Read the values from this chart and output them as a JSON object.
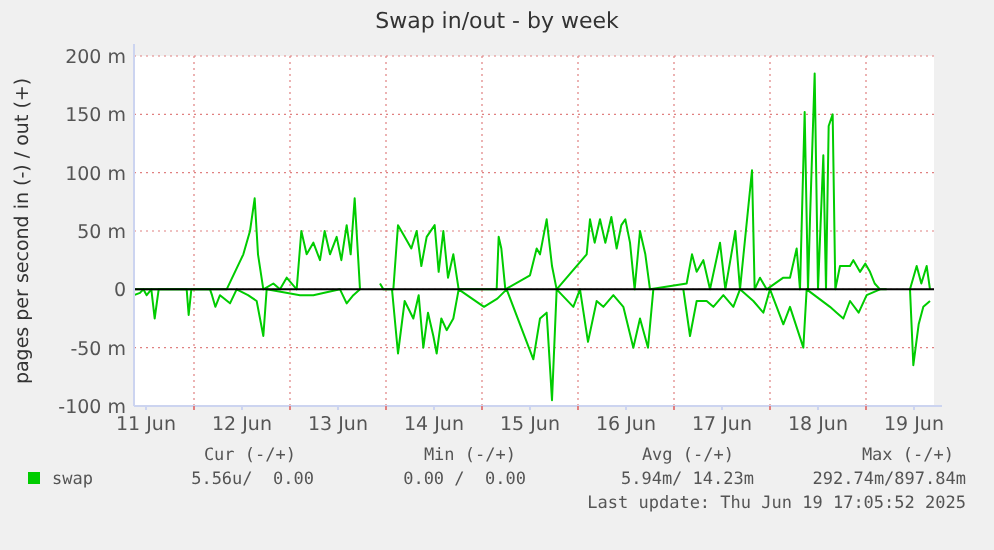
{
  "chart_data": {
    "type": "line",
    "title": "Swap in/out - by week",
    "ylabel": "pages per second in (-) / out (+)",
    "xlim": [
      "2025-06-11T09:00",
      "2025-06-19T17:00"
    ],
    "xticks": [
      {
        "value": "2025-06-11T12:00",
        "label": "11 Jun"
      },
      {
        "value": "2025-06-12T12:00",
        "label": "12 Jun"
      },
      {
        "value": "2025-06-13T12:00",
        "label": "13 Jun"
      },
      {
        "value": "2025-06-14T12:00",
        "label": "14 Jun"
      },
      {
        "value": "2025-06-15T12:00",
        "label": "15 Jun"
      },
      {
        "value": "2025-06-16T12:00",
        "label": "16 Jun"
      },
      {
        "value": "2025-06-17T12:00",
        "label": "17 Jun"
      },
      {
        "value": "2025-06-18T12:00",
        "label": "18 Jun"
      },
      {
        "value": "2025-06-19T12:00",
        "label": "19 Jun"
      },
      {
        "value": "2025-06-12T00:00",
        "label": null
      },
      {
        "value": "2025-06-13T00:00",
        "label": null
      },
      {
        "value": "2025-06-14T00:00",
        "label": null
      },
      {
        "value": "2025-06-15T00:00",
        "label": null
      },
      {
        "value": "2025-06-16T00:00",
        "label": null
      },
      {
        "value": "2025-06-17T00:00",
        "label": null
      },
      {
        "value": "2025-06-18T00:00",
        "label": null
      },
      {
        "value": "2025-06-19T00:00",
        "label": null
      }
    ],
    "ylim": [
      -100,
      200
    ],
    "yticks": [
      {
        "value": -100,
        "label": "-100 m"
      },
      {
        "value": -50,
        "label": "-50 m"
      },
      0,
      {
        "value": 50,
        "label": "50 m"
      },
      {
        "value": 100,
        "label": "100 m"
      },
      {
        "value": 150,
        "label": "150 m"
      },
      {
        "value": 200,
        "label": "200 m"
      }
    ],
    "grid": true,
    "legend": "bottom",
    "marker": "none",
    "line_style": "solid",
    "ref_lines": [
      {
        "axis": "y",
        "value": 0,
        "label": null,
        "color": "#000000"
      }
    ],
    "series": [
      {
        "name": "swap",
        "color": "#00cc00",
        "x": [
          "2025-06-11T09:00",
          "2025-06-12T08:10",
          "2025-06-12T12:20",
          "2025-06-12T14:00",
          "2025-06-12T15:10",
          "2025-06-12T16:00",
          "2025-06-12T17:20",
          "2025-06-12T19:50",
          "2025-06-12T21:30",
          "2025-06-12T23:10",
          "2025-06-13T01:40",
          "2025-06-13T02:50",
          "2025-06-13T04:10",
          "2025-06-13T05:50",
          "2025-06-13T07:30",
          "2025-06-13T08:40",
          "2025-06-13T10:00",
          "2025-06-13T11:40",
          "2025-06-13T12:50",
          "2025-06-13T14:10",
          "2025-06-13T15:10",
          "2025-06-13T16:10",
          "2025-06-13T17:30",
          "2025-06-13T20:00",
          "2025-06-13T22:30",
          "2025-06-13T23:20",
          "2025-06-14T01:50",
          "2025-06-14T03:00",
          "2025-06-14T04:40",
          "2025-06-14T06:20",
          "2025-06-14T07:40",
          "2025-06-14T08:50",
          "2025-06-14T10:10",
          "2025-06-14T12:10",
          "2025-06-14T13:10",
          "2025-06-14T14:20",
          "2025-06-14T15:30",
          "2025-06-14T16:50",
          "2025-06-14T18:10",
          "2025-06-15T03:40",
          "2025-06-15T04:10",
          "2025-06-15T04:50",
          "2025-06-15T05:50",
          "2025-06-15T12:00",
          "2025-06-15T13:40",
          "2025-06-15T14:30",
          "2025-06-15T16:10",
          "2025-06-15T17:30",
          "2025-06-15T18:40",
          "2025-06-16T02:10",
          "2025-06-16T03:00",
          "2025-06-16T04:10",
          "2025-06-16T05:30",
          "2025-06-16T06:50",
          "2025-06-16T08:20",
          "2025-06-16T09:40",
          "2025-06-16T10:50",
          "2025-06-16T11:50",
          "2025-06-16T13:00",
          "2025-06-16T14:10",
          "2025-06-16T15:30",
          "2025-06-16T16:50",
          "2025-06-16T18:00",
          "2025-06-17T03:10",
          "2025-06-17T04:30",
          "2025-06-17T05:40",
          "2025-06-17T07:20",
          "2025-06-17T09:00",
          "2025-06-17T11:30",
          "2025-06-17T12:50",
          "2025-06-17T15:20",
          "2025-06-17T16:30",
          "2025-06-17T19:30",
          "2025-06-17T20:10",
          "2025-06-17T21:30",
          "2025-06-17T23:10",
          "2025-06-18T03:20",
          "2025-06-18T05:00",
          "2025-06-18T06:40",
          "2025-06-18T07:30",
          "2025-06-18T08:40",
          "2025-06-18T09:30",
          "2025-06-18T10:00",
          "2025-06-18T11:10",
          "2025-06-18T12:00",
          "2025-06-18T13:20",
          "2025-06-18T14:00",
          "2025-06-18T14:40",
          "2025-06-18T15:40",
          "2025-06-18T16:20",
          "2025-06-18T17:30",
          "2025-06-18T20:00",
          "2025-06-18T20:50",
          "2025-06-18T22:30",
          "2025-06-18T23:50",
          "2025-06-19T01:00",
          "2025-06-19T02:10",
          "2025-06-19T03:30",
          "2025-06-19T05:10",
          "2025-06-19T08:00",
          "2025-06-19T11:00",
          "2025-06-19T12:40",
          "2025-06-19T13:50",
          "2025-06-19T15:10",
          "2025-06-19T16:00"
        ],
        "values": [
          0,
          0,
          30,
          50,
          78,
          30,
          0,
          5,
          0,
          10,
          0,
          50,
          30,
          40,
          25,
          50,
          30,
          45,
          25,
          55,
          30,
          78,
          0,
          null,
          5,
          0,
          0,
          55,
          45,
          35,
          50,
          20,
          45,
          55,
          15,
          50,
          10,
          30,
          0,
          0,
          45,
          35,
          0,
          12,
          35,
          30,
          60,
          20,
          0,
          30,
          60,
          40,
          60,
          40,
          62,
          35,
          55,
          60,
          40,
          0,
          50,
          30,
          0,
          5,
          30,
          15,
          25,
          0,
          40,
          0,
          50,
          0,
          102,
          0,
          10,
          0,
          10,
          10,
          35,
          0,
          152,
          0,
          60,
          185,
          0,
          115,
          0,
          140,
          150,
          0,
          20,
          20,
          25,
          15,
          22,
          15,
          5,
          0,
          0,
          null,
          0,
          20,
          5,
          20,
          0
        ]
      },
      {
        "color": "#00cc00",
        "x": [
          "2025-06-11T09:00",
          "2025-06-11T10:30",
          "2025-06-11T11:20",
          "2025-06-11T12:10",
          "2025-06-11T13:20",
          "2025-06-11T14:10",
          "2025-06-11T15:10",
          "2025-06-11T22:10",
          "2025-06-11T22:40",
          "2025-06-11T23:20",
          "2025-06-12T04:00",
          "2025-06-12T04:30",
          "2025-06-12T05:20",
          "2025-06-12T06:30",
          "2025-06-12T09:00",
          "2025-06-12T10:40",
          "2025-06-12T13:30",
          "2025-06-12T15:40",
          "2025-06-12T17:20",
          "2025-06-12T18:10",
          "2025-06-13T02:30",
          "2025-06-13T05:50",
          "2025-06-13T12:30",
          "2025-06-13T14:10",
          "2025-06-13T15:50",
          "2025-06-13T17:30",
          "2025-06-13T22:00",
          "2025-06-14T01:30",
          "2025-06-14T03:00",
          "2025-06-14T04:40",
          "2025-06-14T06:50",
          "2025-06-14T08:10",
          "2025-06-14T09:20",
          "2025-06-14T10:30",
          "2025-06-14T11:50",
          "2025-06-14T12:40",
          "2025-06-14T13:50",
          "2025-06-14T15:10",
          "2025-06-14T16:50",
          "2025-06-14T18:10",
          "2025-06-15T00:30",
          "2025-06-15T03:50",
          "2025-06-15T06:10",
          "2025-06-15T12:50",
          "2025-06-15T14:30",
          "2025-06-15T16:10",
          "2025-06-15T17:30",
          "2025-06-15T18:40",
          "2025-06-15T22:50",
          "2025-06-16T00:30",
          "2025-06-16T02:30",
          "2025-06-16T04:40",
          "2025-06-16T06:20",
          "2025-06-16T08:50",
          "2025-06-16T11:20",
          "2025-06-16T13:50",
          "2025-06-16T15:30",
          "2025-06-16T17:30",
          "2025-06-16T18:50",
          "2025-06-17T00:00",
          "2025-06-17T02:20",
          "2025-06-17T04:00",
          "2025-06-17T05:40",
          "2025-06-17T08:10",
          "2025-06-17T09:50",
          "2025-06-17T12:20",
          "2025-06-17T14:50",
          "2025-06-17T16:30",
          "2025-06-17T19:50",
          "2025-06-17T22:20",
          "2025-06-18T00:00",
          "2025-06-18T03:20",
          "2025-06-18T05:00",
          "2025-06-18T08:20",
          "2025-06-18T09:10",
          "2025-06-18T15:00",
          "2025-06-18T16:40",
          "2025-06-18T18:20",
          "2025-06-18T20:00",
          "2025-06-18T22:10",
          "2025-06-19T00:10",
          "2025-06-19T03:30",
          "2025-06-19T08:00",
          "2025-06-19T11:00",
          "2025-06-19T11:50",
          "2025-06-19T13:10",
          "2025-06-19T14:20",
          "2025-06-19T16:00"
        ],
        "values": [
          -5,
          -3,
          0,
          -5,
          0,
          -25,
          0,
          0,
          -22,
          0,
          0,
          -5,
          -15,
          -5,
          -12,
          0,
          -5,
          -10,
          -40,
          0,
          -5,
          -5,
          0,
          -12,
          -5,
          0,
          null,
          0,
          -55,
          -10,
          -25,
          -5,
          -50,
          -20,
          -40,
          -55,
          -25,
          -35,
          -25,
          0,
          -15,
          -8,
          0,
          -60,
          -25,
          -20,
          -95,
          0,
          -15,
          0,
          -45,
          -10,
          -15,
          -5,
          -15,
          -50,
          -25,
          -50,
          0,
          null,
          0,
          -40,
          -10,
          -10,
          -15,
          -5,
          -15,
          0,
          -10,
          -20,
          0,
          -30,
          -15,
          -50,
          0,
          -15,
          -20,
          -25,
          -10,
          -20,
          -5,
          0,
          null,
          0,
          -65,
          -30,
          -15,
          -10
        ]
      }
    ],
    "annotations": [
      "Cur (-/+)",
      "Min (-/+)",
      "Avg (-/+)",
      "Max (-/+)",
      "5.56u/  0.00",
      "0.00 /  0.00",
      "5.94m/ 14.23m",
      "292.74m/897.84m",
      "Last update: Thu Jun 19 17:05:52 2025"
    ]
  }
}
